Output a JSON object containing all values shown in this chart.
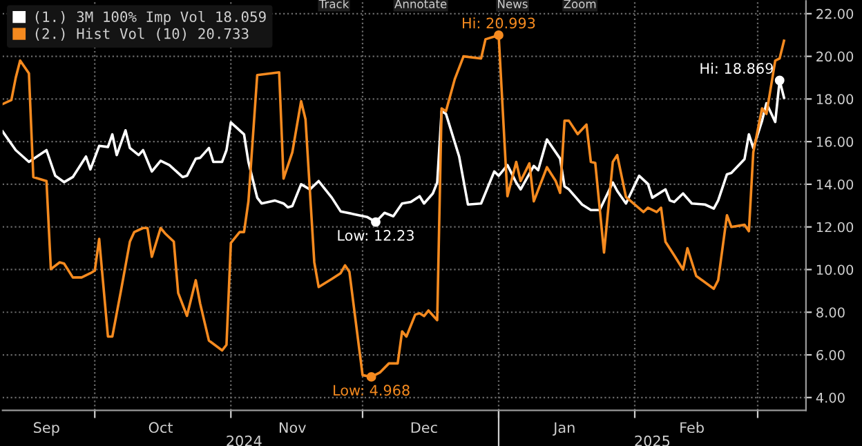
{
  "chart_data": {
    "type": "line",
    "annotations": [
      "Track",
      "Annotate",
      "News",
      "Zoom",
      {
        "text": "Hi: 20.993",
        "x": "2025-01-01",
        "y": 20.993
      },
      {
        "text": "Low: 4.968",
        "x": "2024-12-03",
        "y": 4.968
      },
      {
        "text": "Low: 12.23",
        "x": "2024-12-04",
        "y": 12.23
      },
      {
        "text": "Hi: 18.869",
        "x": "2025-03-06",
        "y": 18.869
      }
    ],
    "series": [
      {
        "name": "(1.) 3M 100% Imp Vol 18.059",
        "color": "#ffffff",
        "x": [
          "2024-09-10",
          "2024-09-13",
          "2024-09-16",
          "2024-09-20",
          "2024-09-22",
          "2024-09-24",
          "2024-09-26",
          "2024-09-29",
          "2024-09-30",
          "2024-10-02",
          "2024-10-04",
          "2024-10-05",
          "2024-10-06",
          "2024-10-08",
          "2024-10-09",
          "2024-10-11",
          "2024-10-12",
          "2024-10-14",
          "2024-10-16",
          "2024-10-18",
          "2024-10-21",
          "2024-10-22",
          "2024-10-24",
          "2024-10-25",
          "2024-10-27",
          "2024-10-28",
          "2024-10-30",
          "2024-10-31",
          "2024-11-01",
          "2024-11-04",
          "2024-11-05",
          "2024-11-07",
          "2024-11-08",
          "2024-11-11",
          "2024-11-13",
          "2024-11-14",
          "2024-11-15",
          "2024-11-17",
          "2024-11-19",
          "2024-11-21",
          "2024-11-24",
          "2024-11-26",
          "2024-11-29",
          "2024-12-02",
          "2024-12-04",
          "2024-12-06",
          "2024-12-08",
          "2024-12-10",
          "2024-12-12",
          "2024-12-14",
          "2024-12-15",
          "2024-12-17",
          "2024-12-18",
          "2024-12-19",
          "2024-12-20",
          "2024-12-23",
          "2024-12-25",
          "2024-12-28",
          "2024-12-31",
          "2025-01-01",
          "2025-01-03",
          "2025-01-05",
          "2025-01-06",
          "2025-01-09",
          "2025-01-10",
          "2025-01-12",
          "2025-01-15",
          "2025-01-16",
          "2025-01-17",
          "2025-01-20",
          "2025-01-22",
          "2025-01-24",
          "2025-01-27",
          "2025-01-28",
          "2025-01-30",
          "2025-02-02",
          "2025-02-04",
          "2025-02-05",
          "2025-02-08",
          "2025-02-09",
          "2025-02-10",
          "2025-02-12",
          "2025-02-14",
          "2025-02-17",
          "2025-02-19",
          "2025-02-20",
          "2025-02-22",
          "2025-02-23",
          "2025-02-26",
          "2025-02-27",
          "2025-02-28",
          "2025-03-02",
          "2025-03-03",
          "2025-03-05",
          "2025-03-06",
          "2025-03-07"
        ],
        "values": [
          16.48,
          15.6,
          15.05,
          15.6,
          14.4,
          14.1,
          14.34,
          15.3,
          14.7,
          15.8,
          15.75,
          16.34,
          15.37,
          16.53,
          15.7,
          15.37,
          15.6,
          14.6,
          15.1,
          14.9,
          14.34,
          14.4,
          15.2,
          15.24,
          15.7,
          15.05,
          15.05,
          15.6,
          16.9,
          16.34,
          15.05,
          13.37,
          13.1,
          13.24,
          13.1,
          12.92,
          12.98,
          14.0,
          13.76,
          14.15,
          13.37,
          12.73,
          12.6,
          12.47,
          12.23,
          12.66,
          12.5,
          13.1,
          13.17,
          13.44,
          13.1,
          13.57,
          14.08,
          17.43,
          17.3,
          15.3,
          13.05,
          13.1,
          14.6,
          14.4,
          14.9,
          14.08,
          13.76,
          14.86,
          14.66,
          16.1,
          15.2,
          13.9,
          13.76,
          13.05,
          12.79,
          12.79,
          14.08,
          13.69,
          13.1,
          14.4,
          14.02,
          13.37,
          13.76,
          13.24,
          13.17,
          13.57,
          13.1,
          13.05,
          12.86,
          13.24,
          14.47,
          14.53,
          15.18,
          16.34,
          15.7,
          16.98,
          17.8,
          16.92,
          18.869,
          18.059
        ]
      },
      {
        "name": "(2.) Hist Vol (10) 20.733",
        "color": "#f58a1f",
        "x": [
          "2024-09-10",
          "2024-09-12",
          "2024-09-13",
          "2024-09-14",
          "2024-09-16",
          "2024-09-17",
          "2024-09-20",
          "2024-09-21",
          "2024-09-23",
          "2024-09-24",
          "2024-09-26",
          "2024-09-28",
          "2024-09-30",
          "2024-10-01",
          "2024-10-02",
          "2024-10-04",
          "2024-10-05",
          "2024-10-07",
          "2024-10-09",
          "2024-10-10",
          "2024-10-12",
          "2024-10-13",
          "2024-10-14",
          "2024-10-16",
          "2024-10-17",
          "2024-10-19",
          "2024-10-20",
          "2024-10-22",
          "2024-10-24",
          "2024-10-25",
          "2024-10-27",
          "2024-10-30",
          "2024-10-31",
          "2024-11-01",
          "2024-11-03",
          "2024-11-04",
          "2024-11-05",
          "2024-11-07",
          "2024-11-12",
          "2024-11-13",
          "2024-11-15",
          "2024-11-17",
          "2024-11-18",
          "2024-11-20",
          "2024-11-21",
          "2024-11-24",
          "2024-11-26",
          "2024-11-27",
          "2024-11-28",
          "2024-12-01",
          "2024-12-03",
          "2024-12-05",
          "2024-12-07",
          "2024-12-09",
          "2024-12-10",
          "2024-12-11",
          "2024-12-13",
          "2024-12-14",
          "2024-12-15",
          "2024-12-16",
          "2024-12-18",
          "2024-12-19",
          "2024-12-20",
          "2024-12-22",
          "2024-12-24",
          "2024-12-28",
          "2024-12-29",
          "2025-01-01",
          "2025-01-03",
          "2025-01-05",
          "2025-01-06",
          "2025-01-08",
          "2025-01-09",
          "2025-01-12",
          "2025-01-14",
          "2025-01-15",
          "2025-01-16",
          "2025-01-17",
          "2025-01-19",
          "2025-01-21",
          "2025-01-22",
          "2025-01-23",
          "2025-01-25",
          "2025-01-27",
          "2025-01-28",
          "2025-01-30",
          "2025-02-03",
          "2025-02-04",
          "2025-02-06",
          "2025-02-07",
          "2025-02-08",
          "2025-02-10",
          "2025-02-12",
          "2025-02-13",
          "2025-02-15",
          "2025-02-19",
          "2025-02-20",
          "2025-02-22",
          "2025-02-23",
          "2025-02-26",
          "2025-02-27",
          "2025-02-28",
          "2025-03-02",
          "2025-03-03",
          "2025-03-05",
          "2025-03-06",
          "2025-03-07"
        ],
        "values": [
          17.76,
          17.95,
          19.0,
          19.8,
          19.2,
          14.34,
          14.15,
          10.02,
          10.34,
          10.28,
          9.63,
          9.63,
          9.83,
          9.95,
          11.44,
          6.86,
          6.86,
          9.05,
          11.31,
          11.76,
          11.95,
          11.95,
          10.6,
          11.95,
          11.7,
          11.31,
          8.9,
          7.83,
          9.5,
          8.41,
          6.67,
          6.21,
          6.47,
          11.25,
          11.76,
          11.76,
          13.2,
          19.12,
          19.25,
          14.27,
          15.5,
          17.9,
          17.05,
          10.34,
          9.18,
          9.56,
          9.83,
          10.2,
          9.89,
          5.05,
          4.968,
          5.18,
          5.6,
          5.6,
          7.1,
          6.86,
          7.89,
          7.95,
          7.82,
          8.08,
          7.63,
          17.56,
          17.43,
          18.93,
          20.0,
          19.9,
          20.8,
          20.993,
          13.44,
          15.05,
          14.15,
          14.98,
          13.2,
          14.8,
          14.15,
          13.6,
          16.98,
          16.98,
          16.35,
          16.8,
          15.05,
          15.0,
          10.8,
          15.05,
          15.37,
          13.4,
          12.7,
          12.9,
          12.7,
          12.9,
          11.3,
          10.66,
          10.0,
          11.0,
          9.7,
          9.1,
          9.5,
          12.55,
          12.0,
          12.1,
          11.8,
          15.5,
          17.56,
          17.3,
          19.8,
          19.9,
          20.733
        ]
      }
    ],
    "xlim": [
      "2024-09-10",
      "2025-03-12"
    ],
    "xticks": [
      {
        "value": "2024-09-20",
        "label": "Sep"
      },
      {
        "value": "2024-10-01",
        "label": null
      },
      {
        "value": "2024-10-16",
        "label": "Oct"
      },
      {
        "value": "2024-11-01",
        "label": null
      },
      {
        "value": "2024-11-15",
        "label": "Nov"
      },
      {
        "value": "2024-12-01",
        "label": null
      },
      {
        "value": "2024-12-15",
        "label": "Dec"
      },
      {
        "value": "2025-01-01",
        "label": null
      },
      {
        "value": "2025-01-16",
        "label": "Jan"
      },
      {
        "value": "2025-02-01",
        "label": null
      },
      {
        "value": "2025-02-14",
        "label": "Feb"
      },
      {
        "value": "2025-03-01",
        "label": null
      }
    ],
    "x2lim": [
      "2024-09-10",
      "2025-03-12"
    ],
    "x2ticks": [
      {
        "value": "2024-11-04",
        "label": "2024"
      },
      {
        "value": "2025-01-01",
        "label": null
      },
      {
        "value": "2025-02-05",
        "label": "2025"
      }
    ],
    "ylim": [
      3.4,
      22.6
    ],
    "yticks": [
      {
        "value": 4,
        "label": "4.00"
      },
      {
        "value": 6,
        "label": "6.00"
      },
      {
        "value": 8,
        "label": "8.00"
      },
      {
        "value": 10,
        "label": "10.00"
      },
      {
        "value": 12,
        "label": "12.00"
      },
      {
        "value": 14,
        "label": "14.00"
      },
      {
        "value": 16,
        "label": "16.00"
      },
      {
        "value": 18,
        "label": "18.00"
      },
      {
        "value": 20,
        "label": "20.00"
      },
      {
        "value": 22,
        "label": "22.00"
      }
    ],
    "grid": true,
    "legend": "top left",
    "line_style": "solid"
  }
}
